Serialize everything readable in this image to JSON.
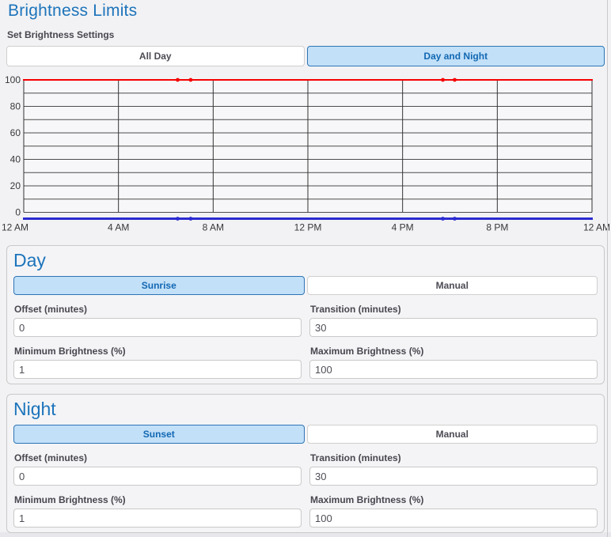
{
  "page": {
    "title": "Brightness Limits"
  },
  "settings_label": "Set Brightness Settings",
  "mode_toggle": {
    "all_day": "All Day",
    "day_and_night": "Day and Night",
    "selected": "Day and Night"
  },
  "chart_data": {
    "type": "line",
    "title": "",
    "x_ticks": [
      "12 AM",
      "4 AM",
      "8 AM",
      "12 PM",
      "4 PM",
      "8 PM",
      "12 AM"
    ],
    "y_ticks": [
      0,
      20,
      40,
      60,
      80,
      100
    ],
    "y_minor_step": 10,
    "ylim": [
      0,
      100
    ],
    "x_range_hours": [
      0,
      24
    ],
    "grid": true,
    "series": [
      {
        "name": "maximum-brightness",
        "color": "#f40000",
        "value": 100,
        "marker_hours": [
          6.5,
          7.05,
          17.7,
          18.2
        ]
      },
      {
        "name": "minimum-brightness",
        "color": "#2b2bd1",
        "value": 0,
        "marker_hours": [
          6.5,
          7.05,
          17.7,
          18.2
        ]
      }
    ]
  },
  "day": {
    "title": "Day",
    "toggle": {
      "sunrise": "Sunrise",
      "manual": "Manual",
      "selected": "Sunrise"
    },
    "fields": [
      {
        "label": "Offset (minutes)",
        "value": "0"
      },
      {
        "label": "Transition (minutes)",
        "value": "30"
      },
      {
        "label": "Minimum Brightness (%)",
        "value": "1"
      },
      {
        "label": "Maximum Brightness (%)",
        "value": "100"
      }
    ]
  },
  "night": {
    "title": "Night",
    "toggle": {
      "sunset": "Sunset",
      "manual": "Manual",
      "selected": "Sunset"
    },
    "fields": [
      {
        "label": "Offset (minutes)",
        "value": "0"
      },
      {
        "label": "Transition (minutes)",
        "value": "30"
      },
      {
        "label": "Minimum Brightness (%)",
        "value": "1"
      },
      {
        "label": "Maximum Brightness (%)",
        "value": "100"
      }
    ]
  },
  "colors": {
    "accent_blue": "#1d74bb",
    "selected_bg": "#c2e0f8",
    "selected_border": "#2e75b6",
    "max_line": "#f40000",
    "min_line": "#2b2bd1"
  }
}
